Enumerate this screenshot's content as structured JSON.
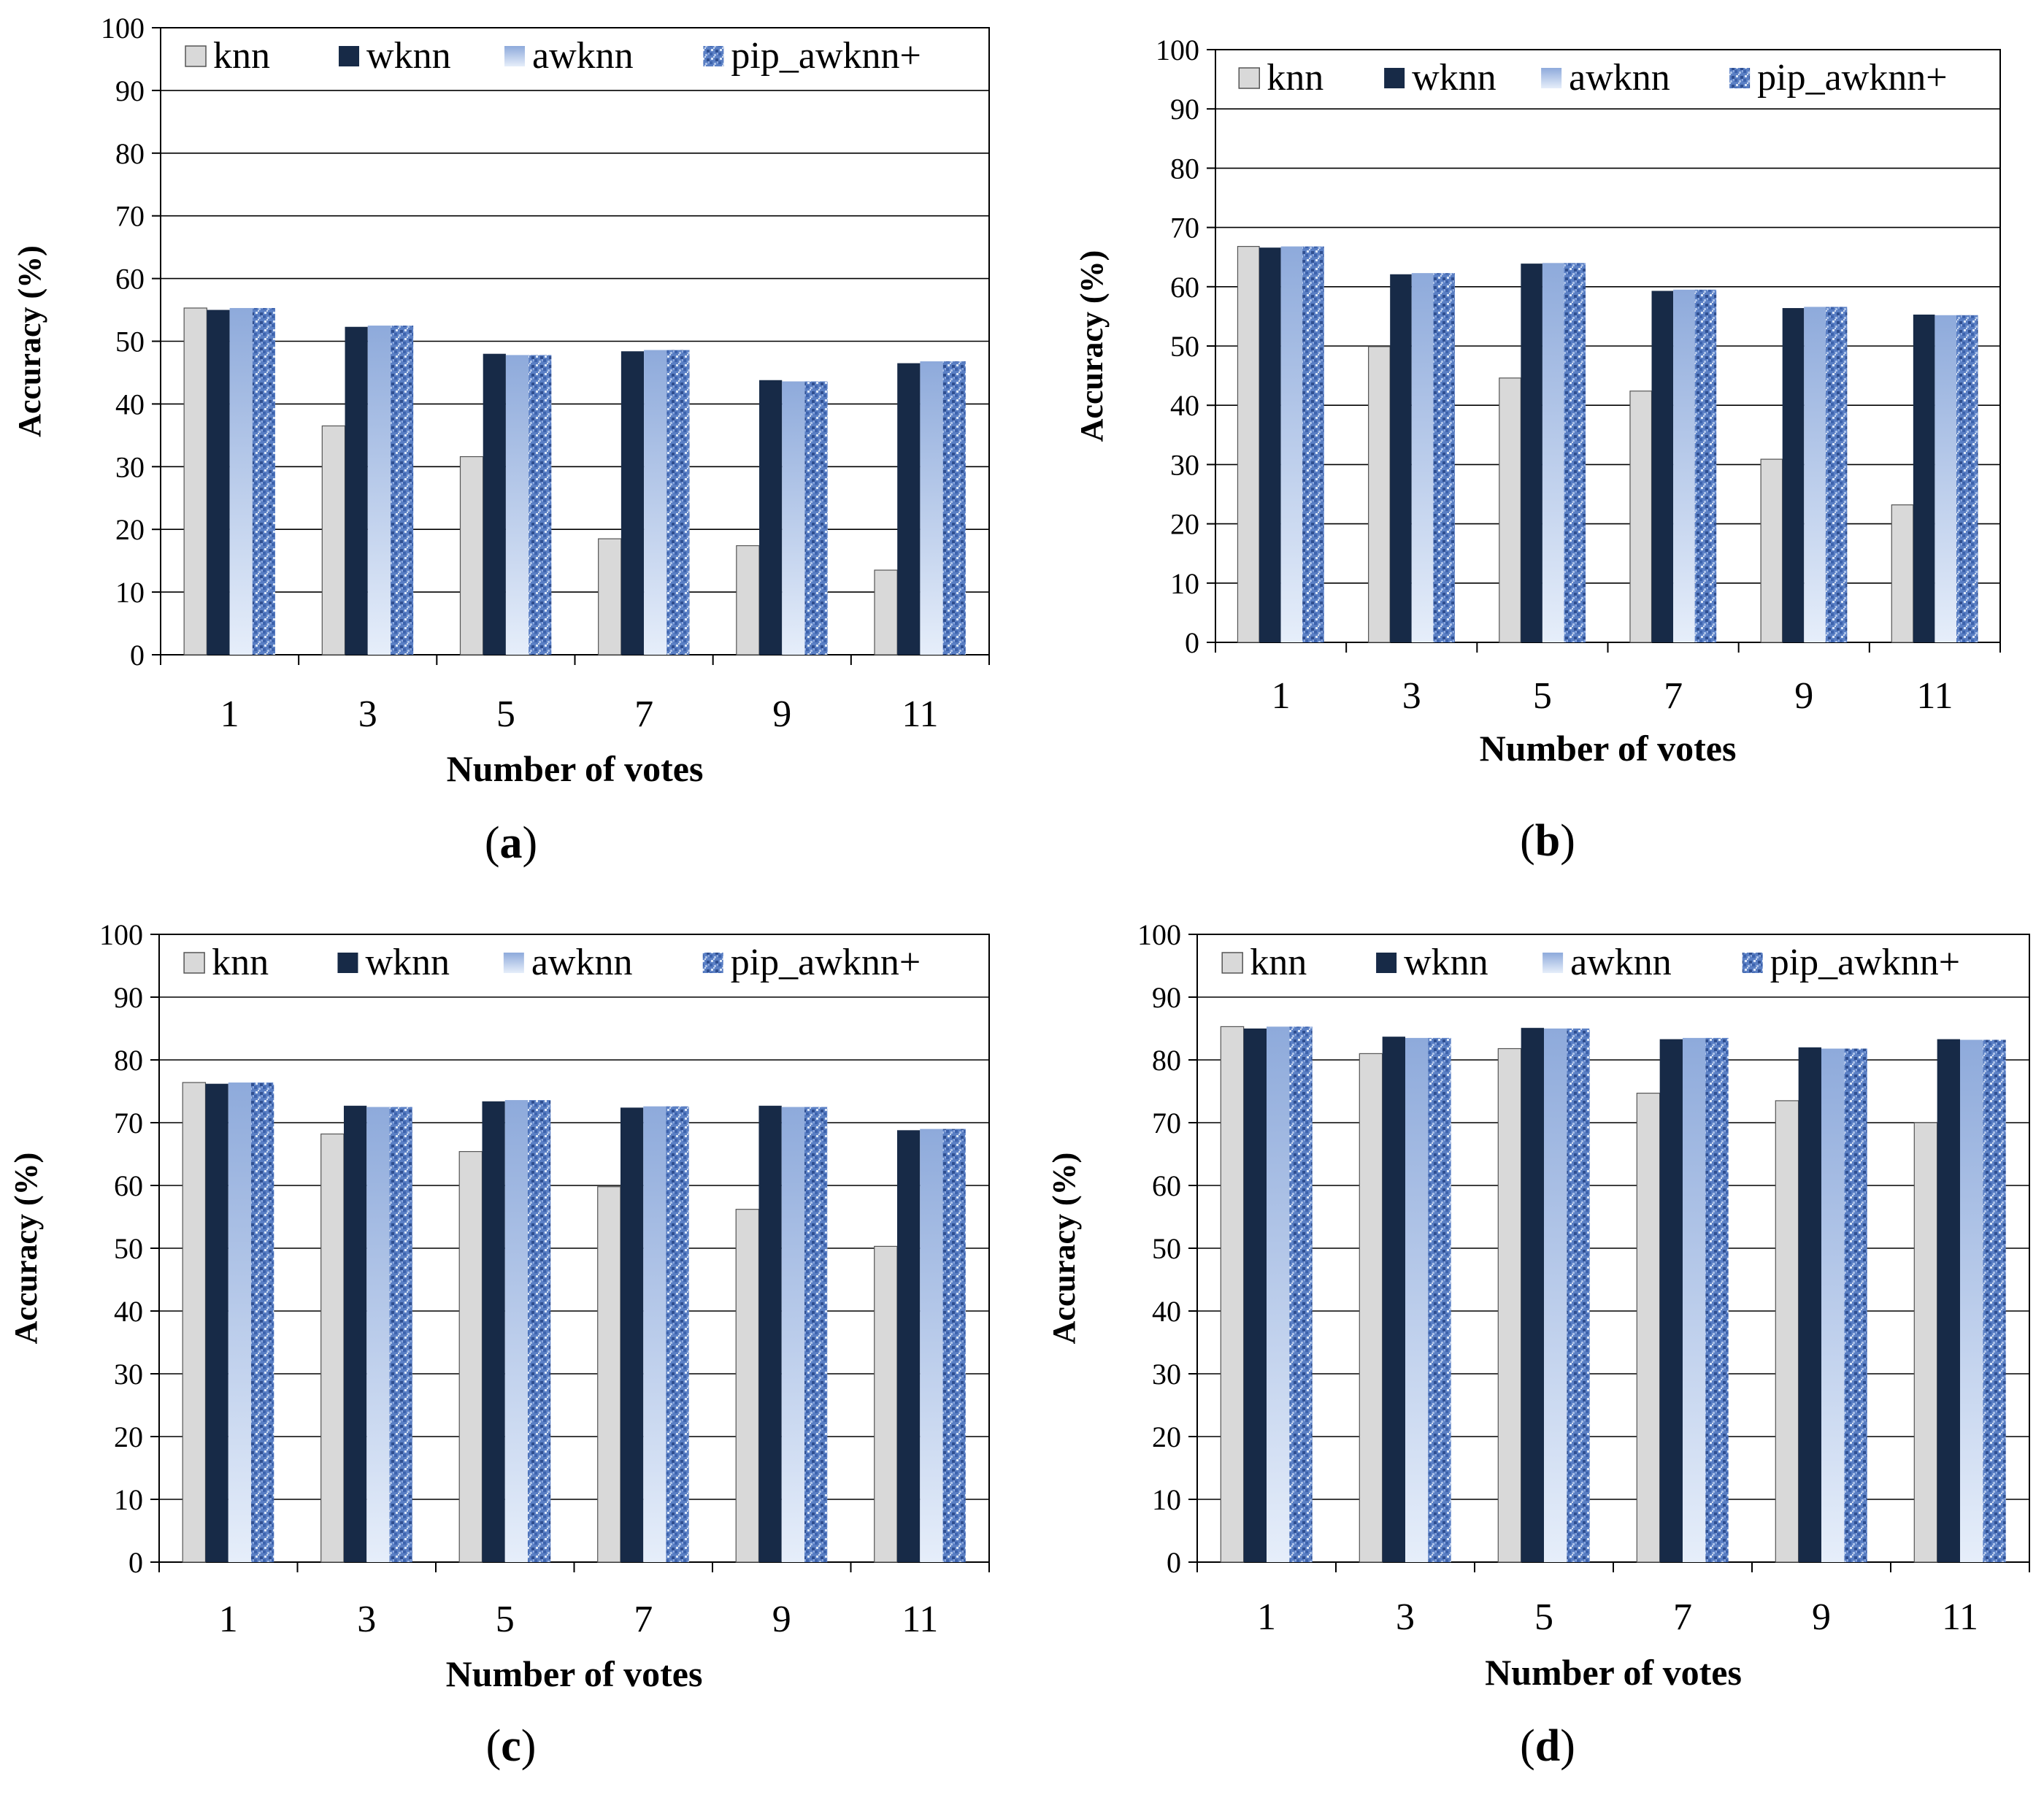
{
  "figure": {
    "panel_labels": [
      "(a)",
      "(b)",
      "(c)",
      "(d)"
    ]
  },
  "colors": {
    "knn": "#d9d9d9",
    "wknn": "#172a47",
    "awknn_top": "#8eaadb",
    "awknn_bottom": "#e6eefa",
    "pip_base": "#5a7fc4",
    "grid": "#000000"
  },
  "chart_data": [
    {
      "id": "a",
      "type": "bar",
      "panel_label": "a",
      "categories": [
        "1",
        "3",
        "5",
        "7",
        "9",
        "11"
      ],
      "series": [
        {
          "name": "knn",
          "values": [
            55.3,
            36.5,
            31.6,
            18.5,
            17.4,
            13.5
          ]
        },
        {
          "name": "wknn",
          "values": [
            55.0,
            52.3,
            48.0,
            48.4,
            43.8,
            46.5
          ]
        },
        {
          "name": "awknn",
          "values": [
            55.3,
            52.5,
            47.8,
            48.6,
            43.6,
            46.8
          ]
        },
        {
          "name": "pip_awknn+",
          "values": [
            55.3,
            52.5,
            47.8,
            48.6,
            43.6,
            46.8
          ]
        }
      ],
      "xlabel": "Number of votes",
      "ylabel": "Accuracy (%)",
      "ylim": [
        0,
        100
      ],
      "yticks": [
        "0",
        "10",
        "20",
        "30",
        "40",
        "50",
        "60",
        "70",
        "80",
        "90",
        "100"
      ],
      "grid": true,
      "legend": "top"
    },
    {
      "id": "b",
      "type": "bar",
      "panel_label": "b",
      "categories": [
        "1",
        "3",
        "5",
        "7",
        "9",
        "11"
      ],
      "series": [
        {
          "name": "knn",
          "values": [
            66.8,
            49.9,
            44.6,
            42.4,
            30.9,
            23.2
          ]
        },
        {
          "name": "wknn",
          "values": [
            66.6,
            62.1,
            63.9,
            59.3,
            56.4,
            55.3
          ]
        },
        {
          "name": "awknn",
          "values": [
            66.8,
            62.3,
            64.0,
            59.5,
            56.6,
            55.2
          ]
        },
        {
          "name": "pip_awknn+",
          "values": [
            66.8,
            62.3,
            64.0,
            59.5,
            56.6,
            55.2
          ]
        }
      ],
      "xlabel": "Number of votes",
      "ylabel": "Accuracy (%)",
      "ylim": [
        0,
        100
      ],
      "yticks": [
        "0",
        "10",
        "20",
        "30",
        "40",
        "50",
        "60",
        "70",
        "80",
        "90",
        "100"
      ],
      "grid": true,
      "legend": "top"
    },
    {
      "id": "c",
      "type": "bar",
      "panel_label": "c",
      "categories": [
        "1",
        "3",
        "5",
        "7",
        "9",
        "11"
      ],
      "series": [
        {
          "name": "knn",
          "values": [
            76.4,
            68.2,
            65.4,
            59.8,
            56.2,
            50.3
          ]
        },
        {
          "name": "wknn",
          "values": [
            76.2,
            72.7,
            73.4,
            72.4,
            72.7,
            68.8
          ]
        },
        {
          "name": "awknn",
          "values": [
            76.4,
            72.5,
            73.6,
            72.6,
            72.5,
            69.0
          ]
        },
        {
          "name": "pip_awknn+",
          "values": [
            76.4,
            72.5,
            73.6,
            72.6,
            72.5,
            69.0
          ]
        }
      ],
      "xlabel": "Number of votes",
      "ylabel": "Accuracy (%)",
      "ylim": [
        0,
        100
      ],
      "yticks": [
        "0",
        "10",
        "20",
        "30",
        "40",
        "50",
        "60",
        "70",
        "80",
        "90",
        "100"
      ],
      "grid": true,
      "legend": "top"
    },
    {
      "id": "d",
      "type": "bar",
      "panel_label": "d",
      "categories": [
        "1",
        "3",
        "5",
        "7",
        "9",
        "11"
      ],
      "series": [
        {
          "name": "knn",
          "values": [
            85.3,
            81.0,
            81.8,
            74.7,
            73.5,
            70.0
          ]
        },
        {
          "name": "wknn",
          "values": [
            85.0,
            83.7,
            85.1,
            83.3,
            82.0,
            83.3
          ]
        },
        {
          "name": "awknn",
          "values": [
            85.3,
            83.5,
            85.0,
            83.5,
            81.8,
            83.2
          ]
        },
        {
          "name": "pip_awknn+",
          "values": [
            85.3,
            83.5,
            85.0,
            83.5,
            81.8,
            83.2
          ]
        }
      ],
      "xlabel": "Number of votes",
      "ylabel": "Accuracy (%)",
      "ylim": [
        0,
        100
      ],
      "yticks": [
        "0",
        "10",
        "20",
        "30",
        "40",
        "50",
        "60",
        "70",
        "80",
        "90",
        "100"
      ],
      "grid": true,
      "legend": "top"
    }
  ]
}
